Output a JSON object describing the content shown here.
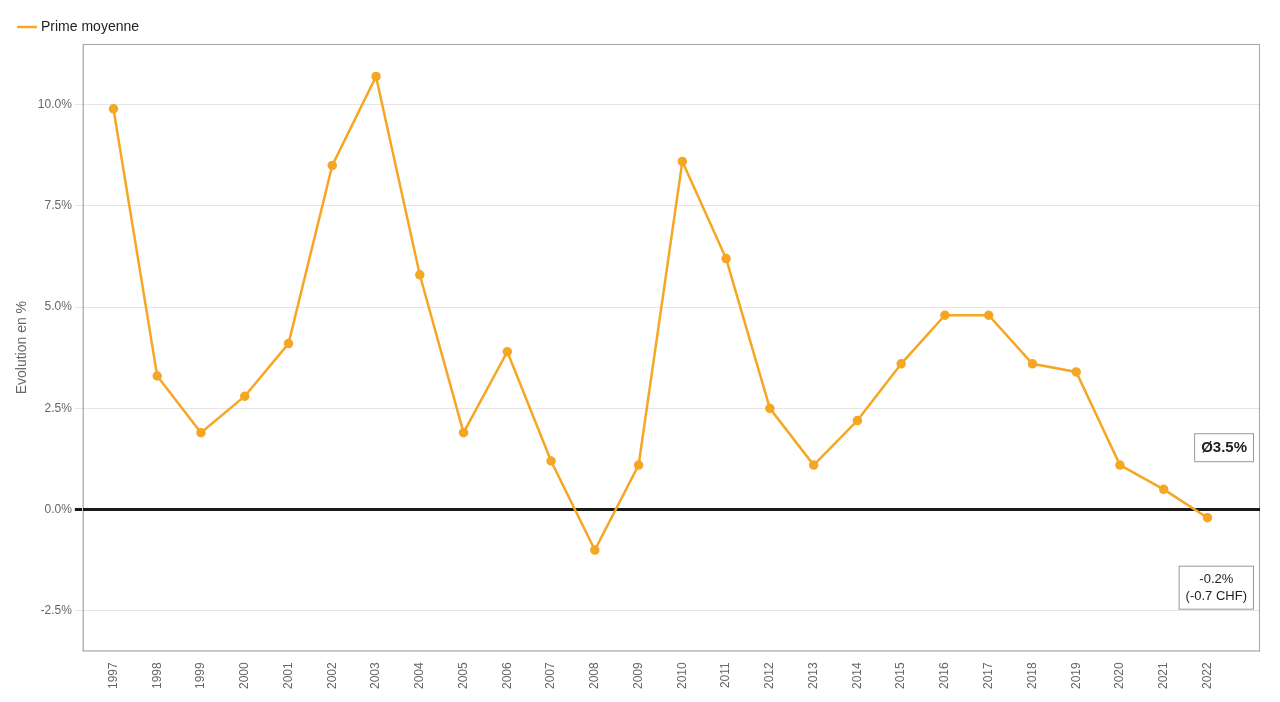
{
  "chart_data": {
    "type": "line",
    "ylabel": "Evolution en %",
    "x": [
      1997,
      1998,
      1999,
      2000,
      2001,
      2002,
      2003,
      2004,
      2005,
      2006,
      2007,
      2008,
      2009,
      2010,
      2011,
      2012,
      2013,
      2014,
      2015,
      2016,
      2017,
      2018,
      2019,
      2020,
      2021,
      2022
    ],
    "series": [
      {
        "name": "Prime moyenne",
        "color": "#F5A623",
        "marker": "circle",
        "line_style": "solid",
        "values": [
          9.9,
          3.3,
          1.9,
          2.8,
          4.1,
          8.5,
          10.7,
          5.8,
          1.9,
          3.9,
          1.2,
          -1.0,
          1.1,
          8.6,
          6.2,
          2.5,
          1.1,
          2.2,
          3.6,
          4.8,
          4.8,
          3.6,
          3.4,
          1.1,
          0.5,
          -0.2
        ]
      }
    ],
    "xlim": [
      1996.3,
      2023.2
    ],
    "xticks": [
      1997,
      1998,
      1999,
      2000,
      2001,
      2002,
      2003,
      2004,
      2005,
      2006,
      2007,
      2008,
      2009,
      2010,
      2011,
      2012,
      2013,
      2014,
      2015,
      2016,
      2017,
      2018,
      2019,
      2020,
      2021,
      2022
    ],
    "ylim": [
      -3.5,
      11.5
    ],
    "yticks": [
      {
        "value": -2.5,
        "label": "-2.5%"
      },
      {
        "value": 0.0,
        "label": "0.0%"
      },
      {
        "value": 2.5,
        "label": "2.5%"
      },
      {
        "value": 5.0,
        "label": "5.0%"
      },
      {
        "value": 7.5,
        "label": "7.5%"
      },
      {
        "value": 10.0,
        "label": "10.0%"
      }
    ],
    "annotations": [
      {
        "lines": [
          "Ø3.5%"
        ]
      },
      {
        "lines": [
          "-0.2%",
          "(-0.7 CHF)"
        ]
      }
    ],
    "grid": "y",
    "legend": "upper left"
  }
}
